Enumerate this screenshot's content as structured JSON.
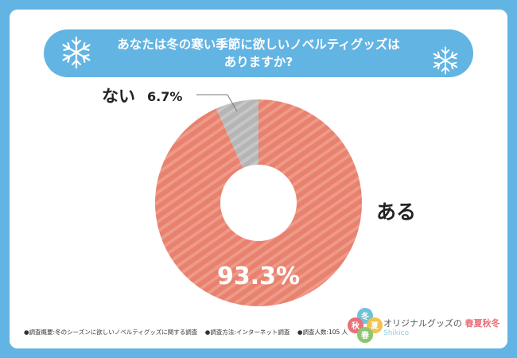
{
  "header": {
    "title_line1": "あなたは冬の寒い季節に欲しいノベルティグッズは",
    "title_line2": "ありますか?"
  },
  "chart_data": {
    "type": "pie",
    "donut": true,
    "categories": [
      "ある",
      "ない"
    ],
    "values": [
      93.3,
      6.7
    ],
    "value_labels": [
      "93.3%",
      "6.7%"
    ],
    "colors": [
      "#e8816e",
      "#b9b9b9"
    ]
  },
  "footer": {
    "note1": "●調査概要:冬のシーズンに欲しいノベルティグッズに関する調査",
    "note2": "●調査方法:インターネット調査",
    "note3": "●調査人数:105 人"
  },
  "brand": {
    "name": "オリジナルグッズ",
    "connector": "の",
    "seasons": "春夏秋冬",
    "sub": "Shikico",
    "logo_chars": [
      "冬",
      "夏",
      "秋",
      "春"
    ],
    "logo_colors": [
      "#6fc3d8",
      "#f2c14e",
      "#e8707a",
      "#8cc76d"
    ]
  },
  "icons": {
    "decor": "snowflake-icon"
  }
}
